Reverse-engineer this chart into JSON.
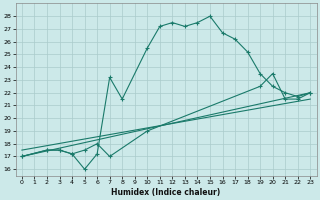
{
  "xlabel": "Humidex (Indice chaleur)",
  "ylabel": "",
  "bg_color": "#cce9e9",
  "grid_color": "#aacccc",
  "line_color": "#1a7a6a",
  "xlim": [
    -0.5,
    23.5
  ],
  "ylim": [
    15.5,
    29
  ],
  "yticks": [
    16,
    17,
    18,
    19,
    20,
    21,
    22,
    23,
    24,
    25,
    26,
    27,
    28
  ],
  "xticks": [
    0,
    1,
    2,
    3,
    4,
    5,
    6,
    7,
    8,
    9,
    10,
    11,
    12,
    13,
    14,
    15,
    16,
    17,
    18,
    19,
    20,
    21,
    22,
    23
  ],
  "line1_x": [
    0,
    2,
    3,
    4,
    5,
    6,
    7,
    8,
    10,
    11,
    12,
    13,
    14,
    15,
    16,
    17,
    18,
    19,
    20,
    21,
    22,
    23
  ],
  "line1_y": [
    17.0,
    17.5,
    17.5,
    17.2,
    16.0,
    17.2,
    23.2,
    21.5,
    25.5,
    27.2,
    27.5,
    27.2,
    27.5,
    28.0,
    26.7,
    26.2,
    25.2,
    23.5,
    22.5,
    22.0,
    21.7,
    22.0
  ],
  "line2_x": [
    0,
    2,
    3,
    4,
    5,
    6,
    7,
    10,
    19,
    20,
    21,
    22,
    23
  ],
  "line2_y": [
    17.0,
    17.5,
    17.5,
    17.2,
    17.5,
    18.0,
    17.0,
    19.0,
    22.5,
    23.5,
    21.5,
    21.5,
    22.0
  ],
  "line3_x": [
    0,
    23
  ],
  "line3_y": [
    17.0,
    22.0
  ],
  "line4_x": [
    0,
    23
  ],
  "line4_y": [
    17.5,
    21.5
  ]
}
